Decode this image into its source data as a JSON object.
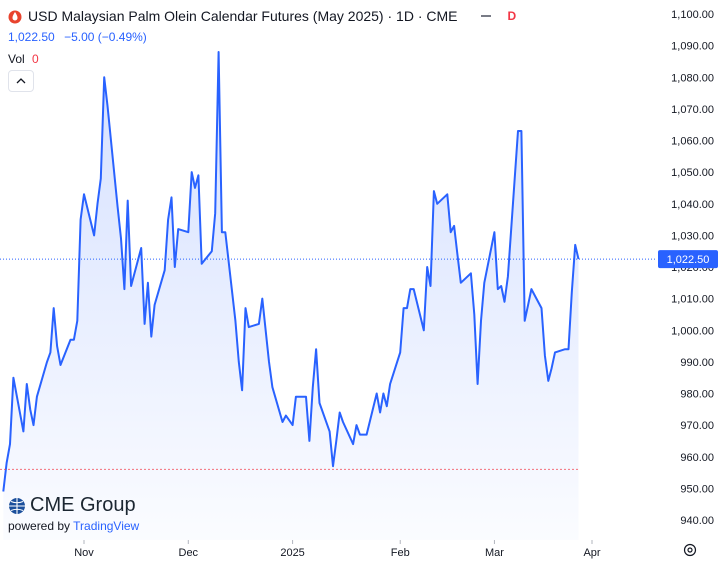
{
  "header": {
    "title": "USD Malaysian Palm Olein Calendar Futures (May 2025) · 1D · CME",
    "interval_badge": "D",
    "last_price": "1,022.50",
    "change": "−5.00 (−0.49%)",
    "volume_label": "Vol",
    "volume_value": "0"
  },
  "branding": {
    "logo_text": "CME Group",
    "powered_by": "powered by",
    "tradingview": "TradingView"
  },
  "price_tag": "1,022.50",
  "colors": {
    "line": "#2962ff",
    "fill_top": "#2962ff",
    "logo_red": "#e8432e",
    "red": "#f23645"
  },
  "chart_data": {
    "type": "area",
    "ylim": [
      936,
      1102
    ],
    "y_ticks": [
      "1,100.00",
      "1,090.00",
      "1,080.00",
      "1,070.00",
      "1,060.00",
      "1,050.00",
      "1,040.00",
      "1,030.00",
      "1,020.00",
      "1,010.00",
      "1,000.00",
      "990.00",
      "980.00",
      "970.00",
      "960.00",
      "950.00",
      "940.00"
    ],
    "y_tick_values": [
      1100,
      1090,
      1080,
      1070,
      1060,
      1050,
      1040,
      1030,
      1020,
      1010,
      1000,
      990,
      980,
      970,
      960,
      950,
      940
    ],
    "x_ticks": [
      "Nov",
      "Dec",
      "2025",
      "Feb",
      "Mar",
      "Apr"
    ],
    "x_tick_values": [
      "2024-11-01",
      "2024-12-02",
      "2025-01-02",
      "2025-02-03",
      "2025-03-03",
      "2025-04-01"
    ],
    "last_price": 1022.5,
    "low_marker": 956,
    "series": [
      {
        "values": [
          [
            "2024-10-08",
            949
          ],
          [
            "2024-10-09",
            958
          ],
          [
            "2024-10-10",
            964
          ],
          [
            "2024-10-11",
            985
          ],
          [
            "2024-10-14",
            968
          ],
          [
            "2024-10-15",
            983
          ],
          [
            "2024-10-16",
            975
          ],
          [
            "2024-10-17",
            970
          ],
          [
            "2024-10-18",
            979
          ],
          [
            "2024-10-21",
            990
          ],
          [
            "2024-10-22",
            993
          ],
          [
            "2024-10-23",
            1007
          ],
          [
            "2024-10-24",
            995
          ],
          [
            "2024-10-25",
            989
          ],
          [
            "2024-10-28",
            997
          ],
          [
            "2024-10-29",
            997
          ],
          [
            "2024-10-30",
            1003
          ],
          [
            "2024-10-31",
            1035
          ],
          [
            "2024-11-01",
            1043
          ],
          [
            "2024-11-04",
            1030
          ],
          [
            "2024-11-05",
            1040
          ],
          [
            "2024-11-06",
            1048
          ],
          [
            "2024-11-07",
            1080
          ],
          [
            "2024-11-08",
            1071
          ],
          [
            "2024-11-11",
            1039
          ],
          [
            "2024-11-12",
            1029
          ],
          [
            "2024-11-13",
            1013
          ],
          [
            "2024-11-14",
            1041
          ],
          [
            "2024-11-15",
            1014
          ],
          [
            "2024-11-18",
            1026
          ],
          [
            "2024-11-19",
            1002
          ],
          [
            "2024-11-20",
            1015
          ],
          [
            "2024-11-21",
            998
          ],
          [
            "2024-11-22",
            1008
          ],
          [
            "2024-11-25",
            1019
          ],
          [
            "2024-11-26",
            1035
          ],
          [
            "2024-11-27",
            1042
          ],
          [
            "2024-11-28",
            1020
          ],
          [
            "2024-11-29",
            1032
          ],
          [
            "2024-12-02",
            1031
          ],
          [
            "2024-12-03",
            1050
          ],
          [
            "2024-12-04",
            1045
          ],
          [
            "2024-12-05",
            1049
          ],
          [
            "2024-12-06",
            1021
          ],
          [
            "2024-12-09",
            1025
          ],
          [
            "2024-12-10",
            1037
          ],
          [
            "2024-12-11",
            1088
          ],
          [
            "2024-12-12",
            1031
          ],
          [
            "2024-12-13",
            1031
          ],
          [
            "2024-12-16",
            1003
          ],
          [
            "2024-12-17",
            990
          ],
          [
            "2024-12-18",
            981
          ],
          [
            "2024-12-19",
            1007
          ],
          [
            "2024-12-20",
            1001
          ],
          [
            "2024-12-23",
            1002
          ],
          [
            "2024-12-24",
            1010
          ],
          [
            "2024-12-26",
            990
          ],
          [
            "2024-12-27",
            982
          ],
          [
            "2024-12-30",
            971
          ],
          [
            "2024-12-31",
            973
          ],
          [
            "2025-01-02",
            970
          ],
          [
            "2025-01-03",
            979
          ],
          [
            "2025-01-06",
            979
          ],
          [
            "2025-01-07",
            965
          ],
          [
            "2025-01-08",
            982
          ],
          [
            "2025-01-09",
            994
          ],
          [
            "2025-01-10",
            977
          ],
          [
            "2025-01-13",
            968
          ],
          [
            "2025-01-14",
            957
          ],
          [
            "2025-01-15",
            965
          ],
          [
            "2025-01-16",
            974
          ],
          [
            "2025-01-17",
            971
          ],
          [
            "2025-01-20",
            964
          ],
          [
            "2025-01-21",
            970
          ],
          [
            "2025-01-22",
            967
          ],
          [
            "2025-01-23",
            967
          ],
          [
            "2025-01-24",
            967
          ],
          [
            "2025-01-27",
            980
          ],
          [
            "2025-01-28",
            974
          ],
          [
            "2025-01-29",
            980
          ],
          [
            "2025-01-30",
            976
          ],
          [
            "2025-01-31",
            983
          ],
          [
            "2025-02-03",
            993
          ],
          [
            "2025-02-04",
            1007
          ],
          [
            "2025-02-05",
            1007
          ],
          [
            "2025-02-06",
            1013
          ],
          [
            "2025-02-07",
            1013
          ],
          [
            "2025-02-10",
            1000
          ],
          [
            "2025-02-11",
            1020
          ],
          [
            "2025-02-12",
            1014
          ],
          [
            "2025-02-13",
            1044
          ],
          [
            "2025-02-14",
            1040
          ],
          [
            "2025-02-17",
            1043
          ],
          [
            "2025-02-18",
            1031
          ],
          [
            "2025-02-19",
            1033
          ],
          [
            "2025-02-20",
            1024
          ],
          [
            "2025-02-21",
            1015
          ],
          [
            "2025-02-24",
            1018
          ],
          [
            "2025-02-25",
            1005
          ],
          [
            "2025-02-26",
            983
          ],
          [
            "2025-02-27",
            1003
          ],
          [
            "2025-02-28",
            1015
          ],
          [
            "2025-03-03",
            1031
          ],
          [
            "2025-03-04",
            1013
          ],
          [
            "2025-03-05",
            1014
          ],
          [
            "2025-03-06",
            1009
          ],
          [
            "2025-03-07",
            1017
          ],
          [
            "2025-03-10",
            1063
          ],
          [
            "2025-03-11",
            1063
          ],
          [
            "2025-03-12",
            1003
          ],
          [
            "2025-03-13",
            1008
          ],
          [
            "2025-03-14",
            1013
          ],
          [
            "2025-03-17",
            1007
          ],
          [
            "2025-03-18",
            992
          ],
          [
            "2025-03-19",
            984
          ],
          [
            "2025-03-20",
            988
          ],
          [
            "2025-03-21",
            993
          ],
          [
            "2025-03-24",
            994
          ],
          [
            "2025-03-25",
            994
          ],
          [
            "2025-03-26",
            1012
          ],
          [
            "2025-03-27",
            1027
          ],
          [
            "2025-03-28",
            1022.5
          ]
        ]
      }
    ]
  }
}
